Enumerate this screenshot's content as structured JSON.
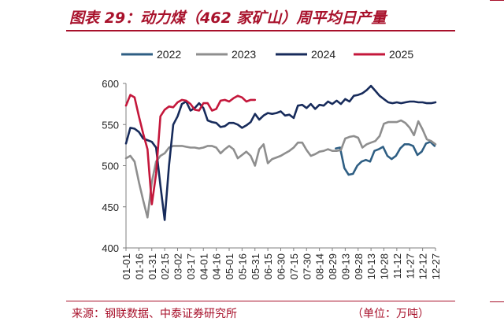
{
  "header": {
    "title": "图表 29：动力煤（462 家矿山）周平均日产量"
  },
  "footer": {
    "source": "来源：钢联数据、中泰证券研究所",
    "unit": "（单位：万吨）"
  },
  "chart_data": {
    "type": "line",
    "ylim": [
      400,
      600
    ],
    "yticks": [
      400,
      450,
      500,
      550,
      600
    ],
    "x_tick_labels": [
      "01-01",
      "01-16",
      "01-31",
      "02-15",
      "03-02",
      "03-17",
      "04-01",
      "04-16",
      "05-01",
      "05-16",
      "05-31",
      "06-15",
      "06-30",
      "07-15",
      "07-30",
      "08-14",
      "08-29",
      "09-13",
      "09-28",
      "10-13",
      "10-28",
      "11-12",
      "11-27",
      "12-12",
      "12-27"
    ],
    "grid": false,
    "legend": "top",
    "series": [
      {
        "name": "2022",
        "color": "#2e5e83",
        "x": [
          245,
          250,
          255,
          260,
          265,
          270,
          275,
          280,
          285,
          290,
          295,
          300,
          305,
          310,
          315,
          320,
          325,
          330,
          335,
          340,
          345,
          350,
          355,
          360
        ],
        "values": [
          521,
          522,
          497,
          489,
          490,
          500,
          505,
          507,
          505,
          518,
          520,
          523,
          512,
          508,
          512,
          521,
          526,
          526,
          524,
          513,
          517,
          527,
          529,
          524
        ]
      },
      {
        "name": "2023",
        "color": "#8e8e8e",
        "x": [
          1,
          6,
          11,
          16,
          21,
          26,
          31,
          36,
          41,
          46,
          51,
          56,
          61,
          66,
          71,
          76,
          81,
          86,
          91,
          96,
          101,
          106,
          111,
          116,
          121,
          126,
          131,
          136,
          141,
          146,
          151,
          156,
          161,
          166,
          171,
          176,
          181,
          186,
          191,
          196,
          201,
          206,
          211,
          216,
          221,
          226,
          231,
          236,
          241,
          246,
          251,
          256,
          261,
          266,
          271,
          276,
          281,
          286,
          291,
          296,
          301,
          306,
          311,
          316,
          321,
          326,
          331,
          336,
          341,
          346,
          351,
          356,
          361
        ],
        "values": [
          509,
          512,
          505,
          480,
          458,
          437,
          480,
          505,
          512,
          515,
          522,
          524,
          524,
          524,
          523,
          522,
          522,
          521,
          522,
          524,
          524,
          522,
          515,
          520,
          524,
          520,
          509,
          513,
          517,
          512,
          500,
          520,
          526,
          503,
          508,
          510,
          512,
          515,
          518,
          522,
          528,
          528,
          519,
          512,
          514,
          517,
          518,
          520,
          518,
          518,
          519,
          533,
          535,
          536,
          534,
          522,
          526,
          528,
          530,
          536,
          551,
          553,
          553,
          553,
          555,
          552,
          546,
          537,
          554,
          544,
          532,
          530,
          526
        ]
      },
      {
        "name": "2024",
        "color": "#172b5b",
        "x": [
          1,
          6,
          11,
          16,
          21,
          26,
          31,
          36,
          41,
          46,
          51,
          56,
          61,
          66,
          71,
          76,
          81,
          86,
          91,
          96,
          101,
          106,
          111,
          116,
          121,
          126,
          131,
          136,
          141,
          146,
          151,
          156,
          161,
          166,
          171,
          176,
          181,
          186,
          191,
          196,
          201,
          206,
          211,
          216,
          221,
          226,
          231,
          236,
          241,
          246,
          251,
          256,
          261,
          266,
          271,
          276,
          281,
          286,
          291,
          296,
          301,
          306,
          311,
          316,
          321,
          326,
          331,
          336,
          341,
          346,
          351,
          356,
          361
        ],
        "values": [
          527,
          546,
          545,
          541,
          533,
          531,
          529,
          522,
          476,
          434,
          500,
          550,
          560,
          575,
          578,
          567,
          570,
          576,
          570,
          555,
          553,
          552,
          547,
          548,
          552,
          552,
          550,
          546,
          549,
          553,
          563,
          556,
          561,
          564,
          563,
          564,
          566,
          561,
          562,
          558,
          573,
          574,
          570,
          575,
          569,
          574,
          573,
          578,
          575,
          579,
          575,
          581,
          578,
          585,
          586,
          588,
          592,
          597,
          591,
          585,
          581,
          577,
          576,
          577,
          576,
          577,
          578,
          578,
          577,
          577,
          576,
          576,
          577
        ]
      },
      {
        "name": "2025",
        "color": "#c4173b",
        "x": [
          1,
          6,
          11,
          16,
          21,
          26,
          31,
          36,
          41,
          46,
          51,
          56,
          61,
          66,
          71,
          76,
          81,
          86,
          91,
          96,
          101,
          106,
          111,
          116,
          121,
          126,
          131,
          136,
          141,
          146,
          151
        ],
        "values": [
          573,
          586,
          583,
          560,
          539,
          520,
          453,
          490,
          560,
          568,
          572,
          571,
          577,
          580,
          579,
          575,
          568,
          567,
          576,
          576,
          567,
          569,
          579,
          580,
          578,
          582,
          585,
          583,
          578,
          580,
          580
        ]
      }
    ]
  }
}
